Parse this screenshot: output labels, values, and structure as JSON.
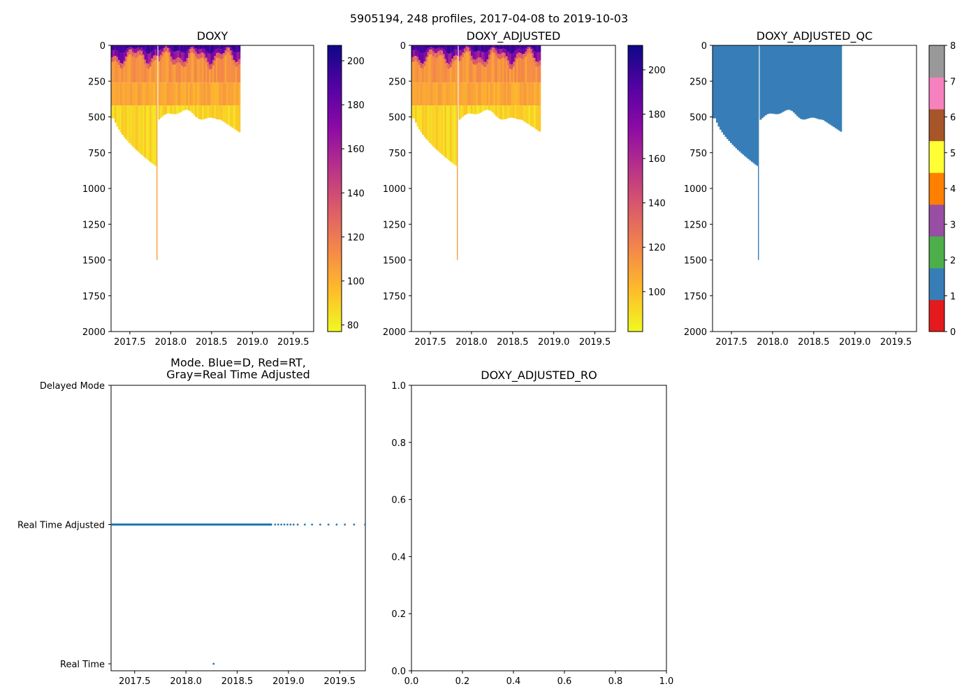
{
  "figure": {
    "suptitle": "5905194, 248 profiles, 2017-04-08 to 2019-10-03"
  },
  "colors": {
    "plasma_stops": [
      "#0d0887",
      "#5302a3",
      "#8b0aa5",
      "#b83289",
      "#db5c68",
      "#f48849",
      "#febd2a",
      "#f0f921"
    ],
    "qc_blue": "#377eb8",
    "mode_dot": "#1f77b4",
    "qc_classes": [
      "#e41a1c",
      "#377eb8",
      "#4daf4a",
      "#984ea3",
      "#ff7f00",
      "#ffff33",
      "#a65628",
      "#f781bf",
      "#999999"
    ]
  },
  "chart_data": [
    {
      "id": "doxy",
      "type": "heatmap",
      "title": "DOXY",
      "x_range": [
        2017.27,
        2019.75
      ],
      "y_range": [
        2000,
        0
      ],
      "x_ticks": [
        2017.5,
        2018.0,
        2018.5,
        2019.0,
        2019.5
      ],
      "x_tick_labels": [
        "2017.5",
        "2018.0",
        "2018.5",
        "2019.0",
        "2019.5"
      ],
      "y_ticks": [
        0,
        250,
        500,
        750,
        1000,
        1250,
        1500,
        1750,
        2000
      ],
      "y_tick_labels": [
        "0",
        "250",
        "500",
        "750",
        "1000",
        "1250",
        "1500",
        "1750",
        "2000"
      ],
      "data_end": 2018.84,
      "colorbar": {
        "range": [
          77,
          207
        ],
        "ticks": [
          80,
          100,
          120,
          140,
          160,
          180,
          200
        ],
        "tick_labels": [
          "80",
          "100",
          "120",
          "140",
          "160",
          "180",
          "200"
        ]
      }
    },
    {
      "id": "doxy_adj",
      "type": "heatmap",
      "title": "DOXY_ADJUSTED",
      "x_range": [
        2017.27,
        2019.75
      ],
      "y_range": [
        2000,
        0
      ],
      "x_ticks": [
        2017.5,
        2018.0,
        2018.5,
        2019.0,
        2019.5
      ],
      "x_tick_labels": [
        "2017.5",
        "2018.0",
        "2018.5",
        "2019.0",
        "2019.5"
      ],
      "y_ticks": [
        0,
        250,
        500,
        750,
        1000,
        1250,
        1500,
        1750,
        2000
      ],
      "y_tick_labels": [
        "0",
        "250",
        "500",
        "750",
        "1000",
        "1250",
        "1500",
        "1750",
        "2000"
      ],
      "data_end": 2018.84,
      "colorbar": {
        "range": [
          82,
          211
        ],
        "ticks": [
          100,
          120,
          140,
          160,
          180,
          200
        ],
        "tick_labels": [
          "100",
          "120",
          "140",
          "160",
          "180",
          "200"
        ]
      }
    },
    {
      "id": "doxy_qc",
      "type": "heatmap",
      "title": "DOXY_ADJUSTED_QC",
      "x_range": [
        2017.27,
        2019.75
      ],
      "y_range": [
        2000,
        0
      ],
      "x_ticks": [
        2017.5,
        2018.0,
        2018.5,
        2019.0,
        2019.5
      ],
      "x_tick_labels": [
        "2017.5",
        "2018.0",
        "2018.5",
        "2019.0",
        "2019.5"
      ],
      "y_ticks": [
        0,
        250,
        500,
        750,
        1000,
        1250,
        1500,
        1750,
        2000
      ],
      "y_tick_labels": [
        "0",
        "250",
        "500",
        "750",
        "1000",
        "1250",
        "1500",
        "1750",
        "2000"
      ],
      "data_end": 2018.84,
      "qc_value_plotted": 1,
      "colorbar": {
        "range": [
          0,
          8
        ],
        "ticks": [
          0,
          1,
          2,
          3,
          4,
          5,
          6,
          7,
          8
        ],
        "tick_labels": [
          "0",
          "1",
          "2",
          "3",
          "4",
          "5",
          "6",
          "7",
          "8"
        ]
      }
    },
    {
      "id": "mode",
      "type": "scatter",
      "title_lines": [
        "Mode. Blue=D, Red=RT,",
        "Gray=Real Time Adjusted"
      ],
      "x_range": [
        2017.27,
        2019.75
      ],
      "y_range": [
        0,
        2
      ],
      "x_ticks": [
        2017.5,
        2018.0,
        2018.5,
        2019.0,
        2019.5
      ],
      "x_tick_labels": [
        "2017.5",
        "2018.0",
        "2018.5",
        "2019.0",
        "2019.5"
      ],
      "y_ticks": [
        0,
        1,
        2
      ],
      "y_tick_labels": [
        "Real Time",
        "Real Time Adjusted",
        "Delayed Mode"
      ],
      "points": {
        "dense_x_start": 2017.27,
        "dense_x_end": 2018.84,
        "dense_y": 1,
        "sparse_x": [
          2018.87,
          2018.9,
          2018.93,
          2018.96,
          2018.99,
          2019.02,
          2019.05,
          2019.09,
          2019.16,
          2019.23,
          2019.31,
          2019.39,
          2019.47,
          2019.55,
          2019.64,
          2019.75
        ],
        "sparse_y": 1,
        "outlier_x": 2018.27,
        "outlier_y": 0
      }
    },
    {
      "id": "doxy_ro",
      "type": "scatter",
      "title": "DOXY_ADJUSTED_RO",
      "x_range": [
        0,
        1
      ],
      "y_range": [
        0,
        1
      ],
      "x_ticks": [
        0,
        0.2,
        0.4,
        0.6,
        0.8,
        1.0
      ],
      "x_tick_labels": [
        "0.0",
        "0.2",
        "0.4",
        "0.6",
        "0.8",
        "1.0"
      ],
      "y_ticks": [
        0,
        0.2,
        0.4,
        0.6,
        0.8,
        1.0
      ],
      "y_tick_labels": [
        "0.0",
        "0.2",
        "0.4",
        "0.6",
        "0.8",
        "1.0"
      ],
      "points": []
    }
  ]
}
